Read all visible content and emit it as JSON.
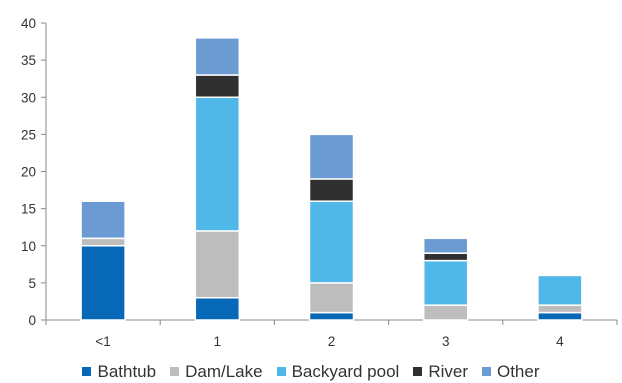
{
  "chart_data": {
    "type": "bar",
    "stacked": true,
    "categories": [
      "<1",
      "1",
      "2",
      "3",
      "4"
    ],
    "series": [
      {
        "name": "Bathtub",
        "color": "#0868b8",
        "values": [
          10,
          3,
          1,
          0,
          1
        ]
      },
      {
        "name": "Dam/Lake",
        "color": "#bdbdbd",
        "values": [
          1,
          9,
          4,
          2,
          1
        ]
      },
      {
        "name": "Backyard pool",
        "color": "#50b8e8",
        "values": [
          0,
          18,
          11,
          6,
          4
        ]
      },
      {
        "name": "River",
        "color": "#303030",
        "values": [
          0,
          3,
          3,
          1,
          0
        ]
      },
      {
        "name": "Other",
        "color": "#6b9bd2",
        "values": [
          5,
          5,
          6,
          2,
          0
        ]
      }
    ],
    "ylim": [
      0,
      40
    ],
    "yticks": [
      "0",
      "5",
      "10",
      "15",
      "20",
      "25",
      "30",
      "35",
      "40"
    ],
    "grid": false,
    "legend_position": "bottom"
  }
}
